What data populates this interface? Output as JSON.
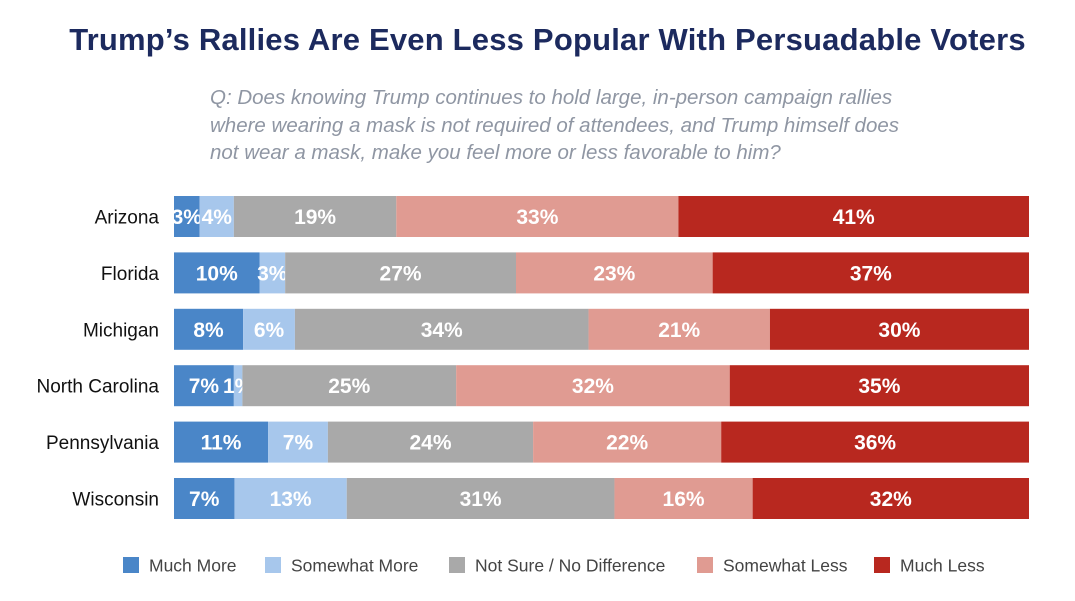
{
  "title": "Trump’s Rallies Are Even Less Popular With Persuadable Voters",
  "question": "Q: Does knowing Trump continues to hold large, in-person campaign rallies where wearing a mask is not required of attendees, and Trump himself does not wear a mask, make you feel more or less favorable to him?",
  "chart_data": {
    "type": "bar",
    "orientation": "horizontal",
    "stacked": true,
    "categories": [
      "Arizona",
      "Florida",
      "Michigan",
      "North Carolina",
      "Pennsylvania",
      "Wisconsin"
    ],
    "series": [
      {
        "name": "Much More",
        "color": "#4a86c8",
        "values": [
          3,
          10,
          8,
          7,
          11,
          7
        ]
      },
      {
        "name": "Somewhat More",
        "color": "#a7c7ec",
        "values": [
          4,
          3,
          6,
          1,
          7,
          13
        ]
      },
      {
        "name": "Not Sure / No Difference",
        "color": "#a9a9a9",
        "values": [
          19,
          27,
          34,
          25,
          24,
          31
        ]
      },
      {
        "name": "Somewhat Less",
        "color": "#e09b92",
        "values": [
          33,
          23,
          21,
          32,
          22,
          16
        ]
      },
      {
        "name": "Much Less",
        "color": "#b8281f",
        "values": [
          41,
          37,
          30,
          35,
          36,
          32
        ]
      }
    ],
    "value_suffix": "%",
    "legend_position": "bottom",
    "xlim": [
      0,
      100
    ]
  }
}
